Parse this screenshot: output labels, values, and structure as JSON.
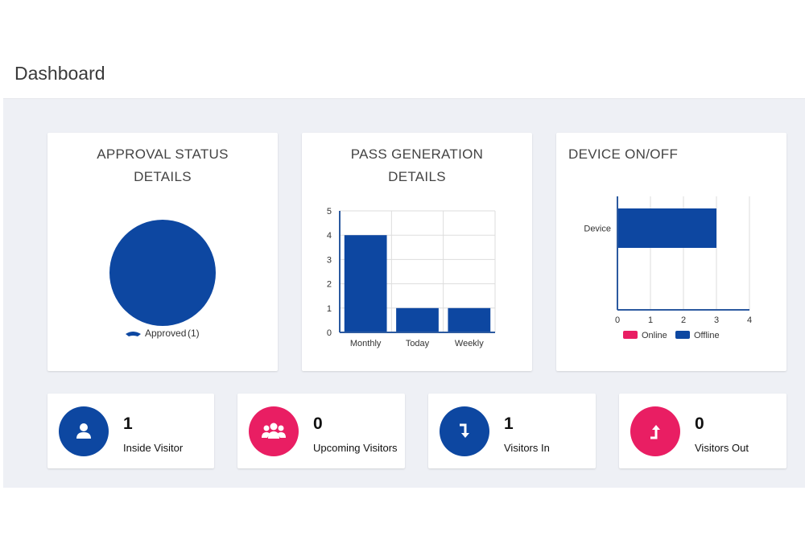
{
  "header": {
    "title": "Dashboard"
  },
  "colors": {
    "blue": "#0d47a1",
    "pink": "#e91e63",
    "grid": "#dddddd",
    "axis": "#2c5aa0"
  },
  "cards": {
    "approval": {
      "title_line1": "APPROVAL STATUS",
      "title_line2": "DETAILS",
      "chart_data": {
        "type": "pie",
        "slices": [
          {
            "label": "Approved",
            "value": 1,
            "color": "#0d47a1"
          }
        ],
        "legend": [
          {
            "label": "Approved",
            "count_text": "(1)"
          }
        ],
        "legend_position": "bottom"
      }
    },
    "pass": {
      "title_line1": "PASS GENERATION",
      "title_line2": "DETAILS",
      "chart_data": {
        "type": "bar",
        "categories": [
          "Monthly",
          "Today",
          "Weekly"
        ],
        "values": [
          4,
          1,
          1
        ],
        "ylim": [
          0,
          5
        ],
        "yticks": [
          "0",
          "1",
          "2",
          "3",
          "4",
          "5"
        ],
        "grid": true,
        "color": "#0d47a1"
      }
    },
    "device": {
      "title": "DEVICE ON/OFF",
      "chart_data": {
        "type": "bar",
        "orientation": "horizontal",
        "categories": [
          "Device"
        ],
        "series": [
          {
            "name": "Online",
            "values": [
              0
            ],
            "color": "#e91e63"
          },
          {
            "name": "Offline",
            "values": [
              3
            ],
            "color": "#0d47a1"
          }
        ],
        "xlim": [
          0,
          4
        ],
        "xticks": [
          "0",
          "1",
          "2",
          "3",
          "4"
        ],
        "grid": true,
        "legend_position": "bottom"
      }
    }
  },
  "stats": [
    {
      "count": "1",
      "label": "Inside Visitor",
      "icon": "user-icon",
      "color": "#0d47a1"
    },
    {
      "count": "0",
      "label": "Upcoming Visitors",
      "icon": "group-icon",
      "color": "#e91e63"
    },
    {
      "count": "1",
      "label": "Visitors In",
      "icon": "arrow-in-icon",
      "color": "#0d47a1"
    },
    {
      "count": "0",
      "label": "Visitors Out",
      "icon": "arrow-out-icon",
      "color": "#e91e63"
    }
  ]
}
